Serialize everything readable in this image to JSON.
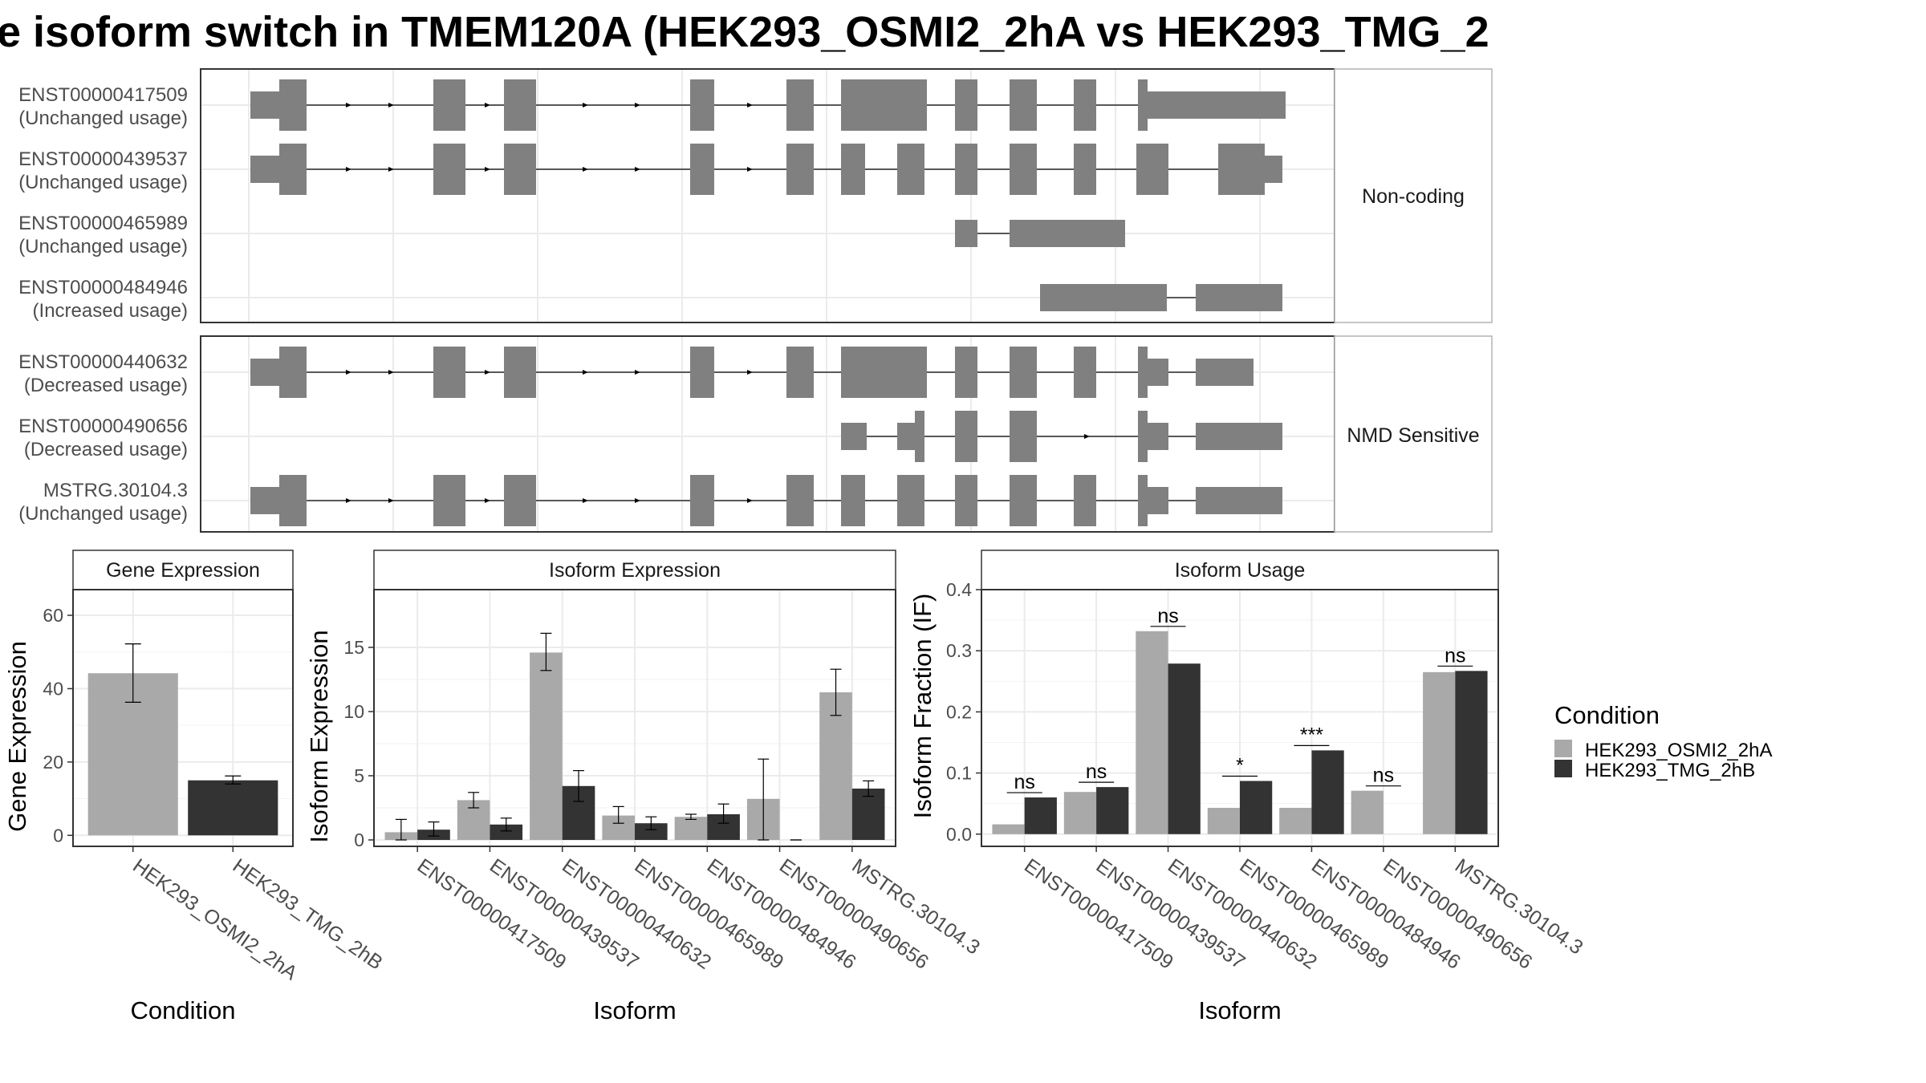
{
  "title": "e isoform switch in TMEM120A (HEK293_OSMI2_2hA vs HEK293_TMG_2",
  "colors": {
    "cond1": "#a9a9a9",
    "cond2": "#333333",
    "exon": "#808080"
  },
  "structure": {
    "groups": [
      {
        "label": "Non-coding",
        "isoforms": [
          {
            "id": "ENST00000417509",
            "usage": "(Unchanged usage)"
          },
          {
            "id": "ENST00000439537",
            "usage": "(Unchanged usage)"
          },
          {
            "id": "ENST00000465989",
            "usage": "(Unchanged usage)"
          },
          {
            "id": "ENST00000484946",
            "usage": "(Increased usage)"
          }
        ]
      },
      {
        "label": "NMD Sensitive",
        "isoforms": [
          {
            "id": "ENST00000440632",
            "usage": "(Decreased usage)"
          },
          {
            "id": "ENST00000490656",
            "usage": "(Decreased usage)"
          },
          {
            "id": "MSTRG.30104.3",
            "usage": "(Unchanged usage)"
          }
        ]
      }
    ]
  },
  "chart_data": [
    {
      "type": "bar",
      "strip": "Gene Expression",
      "xlabel": "Condition",
      "ylabel": "Gene Expression",
      "ylim": [
        -3,
        67
      ],
      "yticks": [
        0,
        20,
        40,
        60
      ],
      "categories": [
        "HEK293_OSMI2_2hA",
        "HEK293_TMG_2hB"
      ],
      "values": [
        44.2,
        15.0
      ],
      "err_low": [
        36.3,
        14.0
      ],
      "err_high": [
        52.2,
        16.2
      ]
    },
    {
      "type": "bar",
      "strip": "Isoform Expression",
      "xlabel": "Isoform",
      "ylabel": "Isoform Expression",
      "ylim": [
        -0.5,
        19.5
      ],
      "yticks": [
        0,
        5,
        10,
        15
      ],
      "categories": [
        "ENST00000417509",
        "ENST00000439537",
        "ENST00000440632",
        "ENST00000465989",
        "ENST00000484946",
        "ENST00000490656",
        "MSTRG.30104.3"
      ],
      "series": [
        {
          "name": "HEK293_OSMI2_2hA",
          "values": [
            0.6,
            3.1,
            14.6,
            1.9,
            1.8,
            3.2,
            11.5
          ],
          "err_low": [
            0.0,
            2.5,
            13.2,
            1.3,
            1.6,
            0.0,
            9.7
          ],
          "err_high": [
            1.6,
            3.7,
            16.1,
            2.6,
            2.0,
            6.3,
            13.3
          ]
        },
        {
          "name": "HEK293_TMG_2hB",
          "values": [
            0.8,
            1.2,
            4.2,
            1.3,
            2.0,
            0.0,
            4.0
          ],
          "err_low": [
            0.3,
            0.7,
            3.0,
            0.8,
            1.3,
            0.0,
            3.4
          ],
          "err_high": [
            1.4,
            1.7,
            5.4,
            1.8,
            2.8,
            0.0,
            4.6
          ]
        }
      ]
    },
    {
      "type": "bar",
      "strip": "Isoform Usage",
      "xlabel": "Isoform",
      "ylabel": "Isoform Fraction (IF)",
      "ylim": [
        -0.02,
        0.4
      ],
      "yticks": [
        0.0,
        0.1,
        0.2,
        0.3,
        0.4
      ],
      "categories": [
        "ENST00000417509",
        "ENST00000439537",
        "ENST00000440632",
        "ENST00000465989",
        "ENST00000484946",
        "ENST00000490656",
        "MSTRG.30104.3"
      ],
      "series": [
        {
          "name": "HEK293_OSMI2_2hA",
          "values": [
            0.016,
            0.069,
            0.332,
            0.043,
            0.043,
            0.071,
            0.265
          ]
        },
        {
          "name": "HEK293_TMG_2hB",
          "values": [
            0.06,
            0.077,
            0.279,
            0.087,
            0.137,
            0.0,
            0.267
          ]
        }
      ],
      "significance": [
        "ns",
        "ns",
        "ns",
        "*",
        "***",
        "ns",
        "ns"
      ]
    }
  ],
  "legend": {
    "title": "Condition",
    "items": [
      "HEK293_OSMI2_2hA",
      "HEK293_TMG_2hB"
    ]
  }
}
